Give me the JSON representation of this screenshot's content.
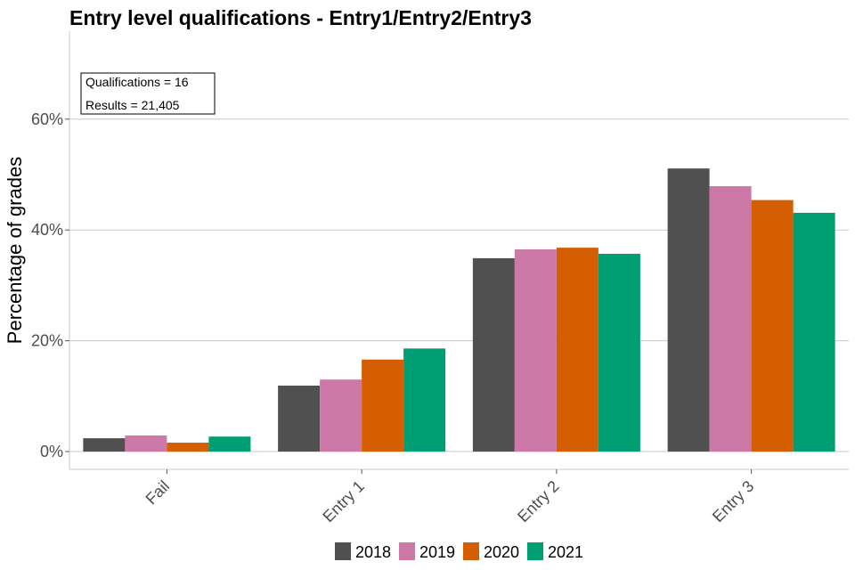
{
  "chart_data": {
    "type": "bar",
    "title": "Entry level qualifications  - Entry1/Entry2/Entry3",
    "xlabel": "",
    "ylabel": "Percentage of grades",
    "categories": [
      "Fail",
      "Entry 1",
      "Entry 2",
      "Entry 3"
    ],
    "series": [
      {
        "name": "2018",
        "color": "#505050",
        "values": [
          2.4,
          11.9,
          34.9,
          51.1
        ]
      },
      {
        "name": "2019",
        "color": "#cc79a7",
        "values": [
          2.9,
          13.0,
          36.5,
          47.9
        ]
      },
      {
        "name": "2020",
        "color": "#d55e00",
        "values": [
          1.6,
          16.6,
          36.8,
          45.4
        ]
      },
      {
        "name": "2021",
        "color": "#009e73",
        "values": [
          2.7,
          18.6,
          35.7,
          43.1
        ]
      }
    ],
    "ylim": [
      0,
      75
    ],
    "yticks": [
      0,
      20,
      40,
      60
    ],
    "ytick_labels": [
      "0%",
      "20%",
      "40%",
      "60%"
    ],
    "grid": "horizontal",
    "legend_position": "bottom",
    "annotation": {
      "qualifications": "Qualifications = 16",
      "results": "Results = 21,405"
    }
  }
}
